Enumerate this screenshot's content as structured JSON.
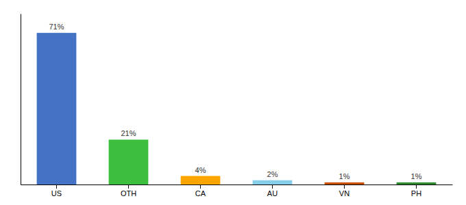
{
  "chart_data": {
    "type": "bar",
    "categories": [
      "US",
      "OTH",
      "CA",
      "AU",
      "VN",
      "PH"
    ],
    "values": [
      71,
      21,
      4,
      2,
      1,
      1
    ],
    "value_labels": [
      "71%",
      "21%",
      "4%",
      "2%",
      "1%",
      "1%"
    ],
    "colors": [
      "#4472C4",
      "#3DBF3D",
      "#FFA500",
      "#87CEEB",
      "#C85000",
      "#2E8B2E"
    ],
    "ylim": [
      0,
      80
    ],
    "tick_labels": "x",
    "grid": false
  }
}
